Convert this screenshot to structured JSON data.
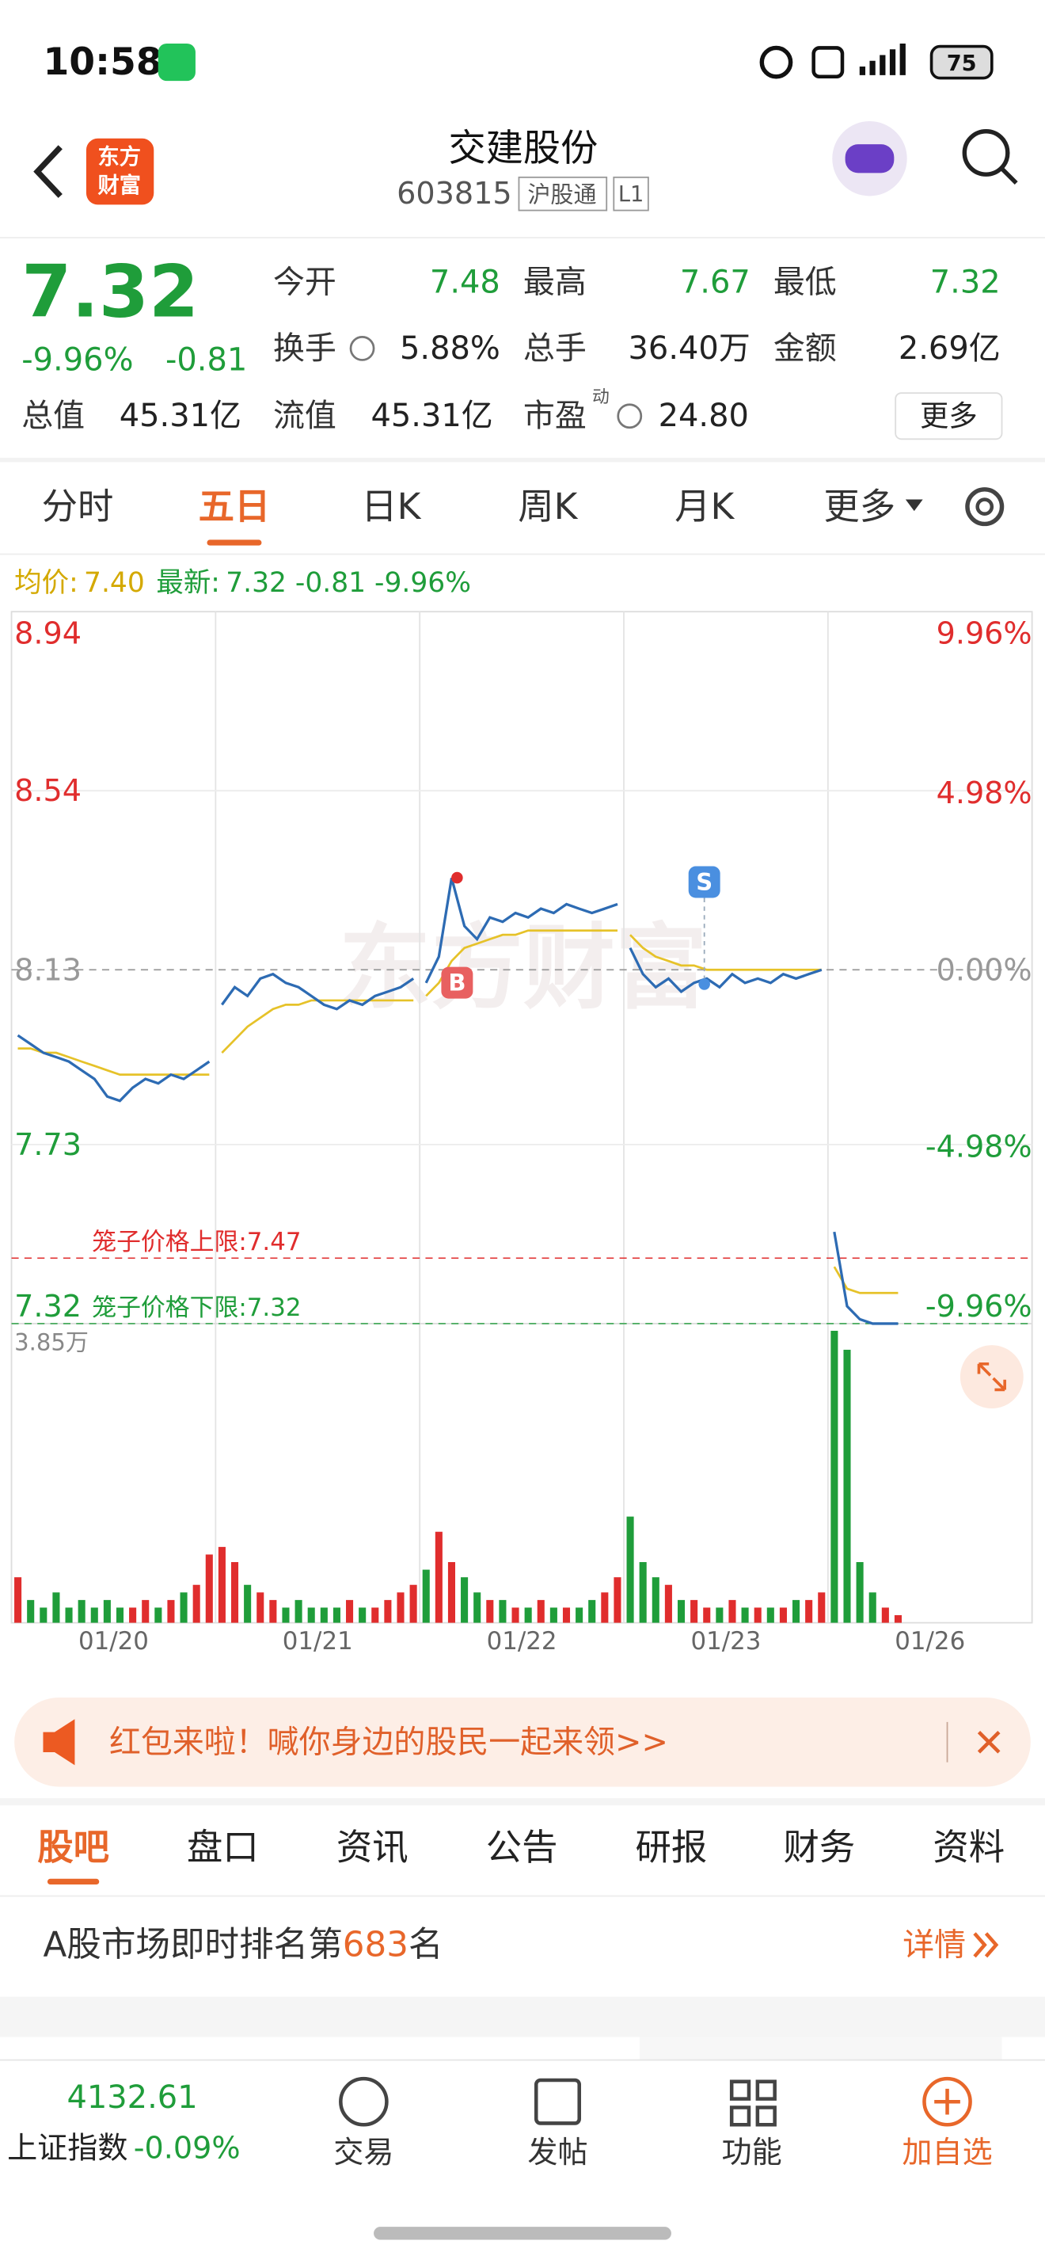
{
  "status_bar": {
    "time": "10:58",
    "battery": "75"
  },
  "header": {
    "logo": [
      "东方",
      "财富"
    ],
    "title": "交建股份",
    "code": "603815",
    "tags": [
      "沪股通",
      "L1"
    ]
  },
  "quote": {
    "price": "7.32",
    "change_pct": "-9.96%",
    "change": "-0.81",
    "fields": [
      {
        "label": "今开",
        "value": "7.48"
      },
      {
        "label": "最高",
        "value": "7.67"
      },
      {
        "label": "最低",
        "value": "7.32"
      },
      {
        "label": "换手",
        "value": "5.88%"
      },
      {
        "label": "总手",
        "value": "36.40万"
      },
      {
        "label": "金额",
        "value": "2.69亿"
      },
      {
        "label": "总值",
        "value": "45.31亿"
      },
      {
        "label": "流值",
        "value": "45.31亿"
      },
      {
        "label": "市盈",
        "value": "24.80",
        "note": "动"
      }
    ],
    "more": "更多"
  },
  "chart_tabs": {
    "items": [
      "分时",
      "五日",
      "日K",
      "周K",
      "月K",
      "更多"
    ],
    "active": 1
  },
  "chart": {
    "type": "line",
    "watermark": "东方财富",
    "legend": {
      "avg_label": "均价:",
      "avg": "7.40",
      "last_label": "最新:",
      "last": "7.32",
      "change": "-0.81",
      "change_pct": "-9.96%"
    },
    "ylim": [
      7.32,
      8.94
    ],
    "yticks": [
      8.94,
      8.54,
      8.13,
      7.73,
      7.32
    ],
    "y2lim": [
      -9.96,
      9.96
    ],
    "y2ticks": [
      {
        "value": 9.96,
        "label": "9.96%"
      },
      {
        "value": 4.98,
        "label": "4.98%"
      },
      {
        "value": 0,
        "label": "0.00%"
      },
      {
        "value": -4.98,
        "label": "-4.98%"
      },
      {
        "value": -9.96,
        "label": "-9.96%"
      }
    ],
    "price_limits": [
      {
        "label": "笼子价格上限:",
        "value": 7.47
      },
      {
        "label": "笼子价格下限:",
        "value": 7.32
      }
    ],
    "volume_lim": [
      0,
      3.85
    ],
    "volume_ticks": [
      {
        "value": 3.85,
        "label": "3.85万"
      }
    ],
    "colors": {
      "price": "#2d6bb3",
      "avg": "#e6c229",
      "up": "#e02d2d",
      "down": "#1f9d3a"
    },
    "trade_marks": [
      "B",
      "S"
    ],
    "days": [
      {
        "date": "01/20",
        "price": [
          7.98,
          7.96,
          7.94,
          7.93,
          7.92,
          7.9,
          7.88,
          7.84,
          7.83,
          7.86,
          7.88,
          7.87,
          7.89,
          7.88,
          7.9,
          7.92
        ],
        "avg": [
          7.95,
          7.95,
          7.94,
          7.94,
          7.93,
          7.92,
          7.91,
          7.9,
          7.89,
          7.89,
          7.89,
          7.89,
          7.89,
          7.89,
          7.89,
          7.89
        ],
        "volume": [
          0.6,
          0.3,
          0.2,
          0.4,
          0.2,
          0.3,
          0.2,
          0.3,
          0.2,
          0.2,
          0.3,
          0.2,
          0.3,
          0.4,
          0.5,
          0.9
        ]
      },
      {
        "date": "01/21",
        "price": [
          8.05,
          8.09,
          8.07,
          8.11,
          8.12,
          8.1,
          8.09,
          8.07,
          8.05,
          8.04,
          8.06,
          8.05,
          8.07,
          8.08,
          8.09,
          8.11
        ],
        "avg": [
          7.94,
          7.97,
          8.0,
          8.02,
          8.04,
          8.05,
          8.05,
          8.06,
          8.06,
          8.06,
          8.06,
          8.06,
          8.06,
          8.06,
          8.06,
          8.06
        ],
        "volume": [
          1.0,
          0.8,
          0.5,
          0.4,
          0.3,
          0.2,
          0.3,
          0.2,
          0.2,
          0.2,
          0.3,
          0.2,
          0.2,
          0.3,
          0.4,
          0.5
        ]
      },
      {
        "date": "01/22",
        "price": [
          8.1,
          8.16,
          8.34,
          8.23,
          8.2,
          8.25,
          8.24,
          8.26,
          8.25,
          8.27,
          8.26,
          8.28,
          8.27,
          8.26,
          8.27,
          8.28
        ],
        "avg": [
          8.07,
          8.1,
          8.15,
          8.18,
          8.19,
          8.2,
          8.21,
          8.21,
          8.22,
          8.22,
          8.22,
          8.22,
          8.22,
          8.22,
          8.22,
          8.22
        ],
        "volume": [
          0.7,
          1.2,
          0.8,
          0.6,
          0.4,
          0.3,
          0.3,
          0.2,
          0.2,
          0.3,
          0.2,
          0.2,
          0.2,
          0.3,
          0.4,
          0.6
        ]
      },
      {
        "date": "01/23",
        "price": [
          8.18,
          8.12,
          8.09,
          8.11,
          8.08,
          8.1,
          8.11,
          8.09,
          8.12,
          8.1,
          8.11,
          8.1,
          8.12,
          8.11,
          8.12,
          8.13
        ],
        "avg": [
          8.21,
          8.18,
          8.16,
          8.15,
          8.14,
          8.14,
          8.13,
          8.13,
          8.13,
          8.13,
          8.13,
          8.13,
          8.13,
          8.13,
          8.13,
          8.13
        ],
        "volume": [
          1.4,
          0.8,
          0.6,
          0.5,
          0.3,
          0.3,
          0.2,
          0.2,
          0.3,
          0.2,
          0.2,
          0.2,
          0.2,
          0.3,
          0.3,
          0.4
        ]
      },
      {
        "date": "01/26",
        "price": [
          7.53,
          7.36,
          7.33,
          7.32,
          7.32,
          7.32,
          null,
          null,
          null,
          null,
          null,
          null,
          null,
          null,
          null,
          null
        ],
        "avg": [
          7.45,
          7.4,
          7.39,
          7.39,
          7.39,
          7.39,
          null,
          null,
          null,
          null,
          null,
          null,
          null,
          null,
          null,
          null
        ],
        "volume": [
          3.85,
          3.6,
          0.8,
          0.4,
          0.2,
          0.1,
          null,
          null,
          null,
          null,
          null,
          null,
          null,
          null,
          null,
          null
        ]
      }
    ]
  },
  "banner": {
    "text": "红包来啦！喊你身边的股民一起来领>>"
  },
  "section_tabs": {
    "items": [
      "股吧",
      "盘口",
      "资讯",
      "公告",
      "研报",
      "财务",
      "资料"
    ],
    "active": 0
  },
  "ranking": {
    "prefix": "A股市场即时排名第",
    "rank": "683",
    "suffix": "名",
    "link": "详情"
  },
  "bottom_bar": {
    "index_value": "4132.61",
    "index_name": "上证指数",
    "index_change": "-0.09%",
    "items": [
      "交易",
      "发帖",
      "功能",
      "加自选"
    ]
  }
}
